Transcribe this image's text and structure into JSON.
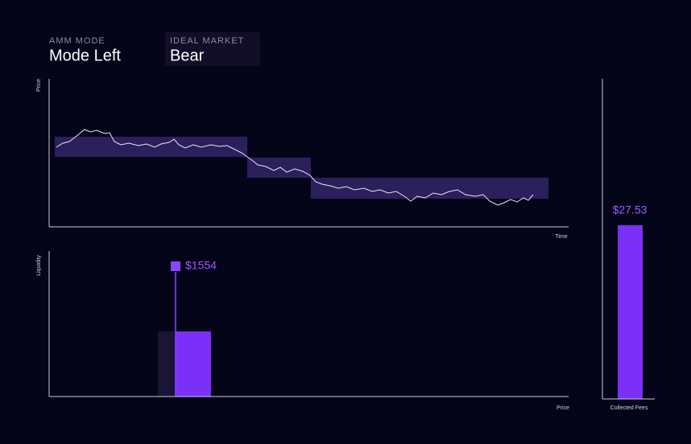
{
  "header": {
    "mode_label": "AMM MODE",
    "mode": "Mode Left",
    "market_label": "IDEAL MARKET",
    "market": "Bear"
  },
  "price_chart": {
    "y_label": "Price",
    "x_label": "Time"
  },
  "liquidity_chart": {
    "y_label": "Liquidity",
    "x_label": "Price",
    "value": 1554,
    "value_label": "$1554"
  },
  "fees_chart": {
    "x_label": "Collected Fees",
    "value": 27.53,
    "value_label": "$27.53"
  }
}
